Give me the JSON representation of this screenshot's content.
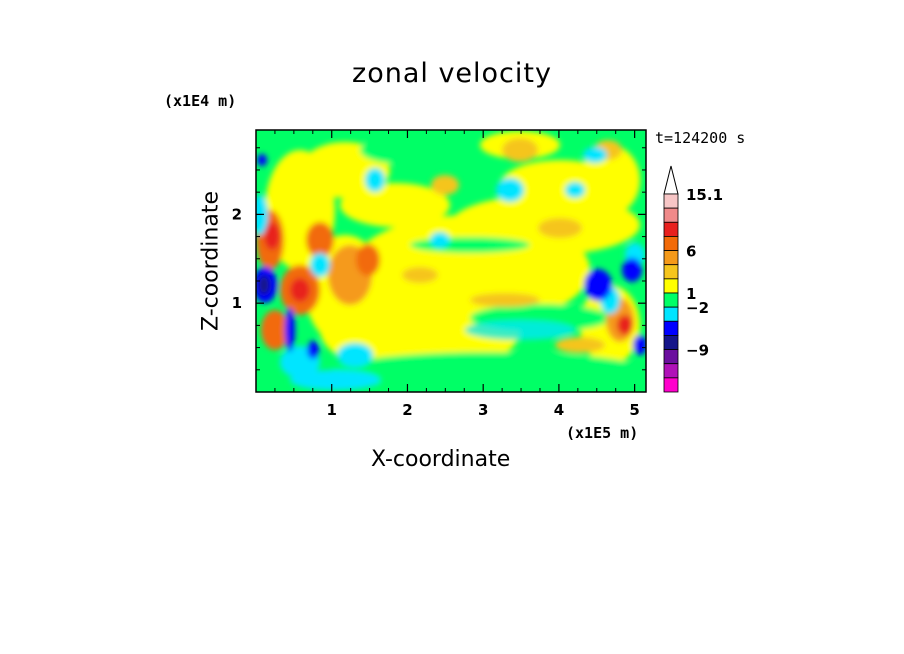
{
  "chart_data": {
    "type": "heatmap",
    "title": "zonal velocity",
    "xlabel": "X-coordinate",
    "ylabel": "Z-coordinate",
    "x_scale_label": "(x1E5 m)",
    "y_scale_label": "(x1E4 m)",
    "annotation": "t=124200 s",
    "xlim": [
      0,
      5.15
    ],
    "ylim": [
      0,
      2.95
    ],
    "x_ticks": [
      1,
      2,
      3,
      4,
      5
    ],
    "x_tick_labels": [
      "1",
      "2",
      "3",
      "4",
      "5"
    ],
    "y_ticks": [
      1,
      2
    ],
    "y_tick_labels": [
      "1",
      "2"
    ],
    "colorbar": {
      "tick_labels": [
        "15.1",
        "6",
        "1",
        "−2",
        "−9"
      ],
      "colors_top_to_bottom": [
        "#f7c6c6",
        "#f08a8a",
        "#e8201e",
        "#f26a08",
        "#f59a1a",
        "#f5c51d",
        "#ffff00",
        "#00ff66",
        "#00e5ff",
        "#0000ff",
        "#15158a",
        "#6b0f9e",
        "#b011b8",
        "#ff00cc"
      ],
      "extend": "max"
    },
    "features": [
      {
        "x": 0.12,
        "z": 1.2,
        "value": -9
      },
      {
        "x": 0.35,
        "z": 1.1,
        "value": 6
      },
      {
        "x": 0.5,
        "z": 0.7,
        "value": -9
      },
      {
        "x": 0.9,
        "z": 1.1,
        "value": 6
      },
      {
        "x": 1.5,
        "z": 1.4,
        "value": 6
      },
      {
        "x": 4.6,
        "z": 1.1,
        "value": -9
      },
      {
        "x": 4.5,
        "z": 0.6,
        "value": 6
      },
      {
        "x": 3.2,
        "z": 0.8,
        "value": -2
      },
      {
        "x": 2.2,
        "z": 1.6,
        "value": 1
      },
      {
        "x": 3.0,
        "z": 2.1,
        "value": 1
      },
      {
        "x": 1.7,
        "z": 2.6,
        "value": -2
      }
    ]
  }
}
